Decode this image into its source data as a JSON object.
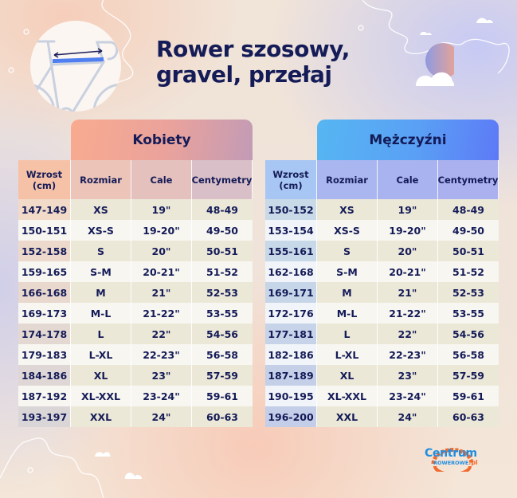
{
  "title": {
    "line1": "Rower szosowy,",
    "line2": "gravel, przełaj"
  },
  "illustration": {
    "icon": "bike-frame-measure-icon",
    "sun_icon": "sun-cloud-icon"
  },
  "columns": [
    "Wzrost (cm)",
    "Rozmiar",
    "Cale",
    "Centymetry"
  ],
  "column_labels": {
    "height_line1": "Wzrost",
    "height_line2": "(cm)",
    "size": "Rozmiar",
    "inches": "Cale",
    "cm": "Centymetry"
  },
  "women": {
    "label": "Kobiety",
    "rows": [
      [
        "147-149",
        "XS",
        "19\"",
        "48-49"
      ],
      [
        "150-151",
        "XS-S",
        "19-20\"",
        "49-50"
      ],
      [
        "152-158",
        "S",
        "20\"",
        "50-51"
      ],
      [
        "159-165",
        "S-M",
        "20-21\"",
        "51-52"
      ],
      [
        "166-168",
        "M",
        "21\"",
        "52-53"
      ],
      [
        "169-173",
        "M-L",
        "21-22\"",
        "53-55"
      ],
      [
        "174-178",
        "L",
        "22\"",
        "54-56"
      ],
      [
        "179-183",
        "L-XL",
        "22-23\"",
        "56-58"
      ],
      [
        "184-186",
        "XL",
        "23\"",
        "57-59"
      ],
      [
        "187-192",
        "XL-XXL",
        "23-24\"",
        "59-61"
      ],
      [
        "193-197",
        "XXL",
        "24\"",
        "60-63"
      ]
    ]
  },
  "men": {
    "label": "Mężczyźni",
    "rows": [
      [
        "150-152",
        "XS",
        "19\"",
        "48-49"
      ],
      [
        "153-154",
        "XS-S",
        "19-20\"",
        "49-50"
      ],
      [
        "155-161",
        "S",
        "20\"",
        "50-51"
      ],
      [
        "162-168",
        "S-M",
        "20-21\"",
        "51-52"
      ],
      [
        "169-171",
        "M",
        "21\"",
        "52-53"
      ],
      [
        "172-176",
        "M-L",
        "21-22\"",
        "53-55"
      ],
      [
        "177-181",
        "L",
        "22\"",
        "54-56"
      ],
      [
        "182-186",
        "L-XL",
        "22-23\"",
        "56-58"
      ],
      [
        "187-189",
        "XL",
        "23\"",
        "57-59"
      ],
      [
        "190-195",
        "XL-XXL",
        "23-24\"",
        "59-61"
      ],
      [
        "196-200",
        "XXL",
        "24\"",
        "60-63"
      ]
    ]
  },
  "logo": {
    "line1": "Centrum",
    "line2": "ROWEROWE",
    "suffix": ".pl"
  },
  "colors": {
    "text": "#141b57",
    "women_band_start": "#f9ab90",
    "women_band_end": "#c09ab5",
    "men_band_start": "#56b6f2",
    "men_band_end": "#5a7af5",
    "row_odd": "#ece8d8",
    "row_even": "#f8f6f1",
    "logo_blue": "#1f8ee0",
    "logo_orange": "#f26a2e"
  }
}
